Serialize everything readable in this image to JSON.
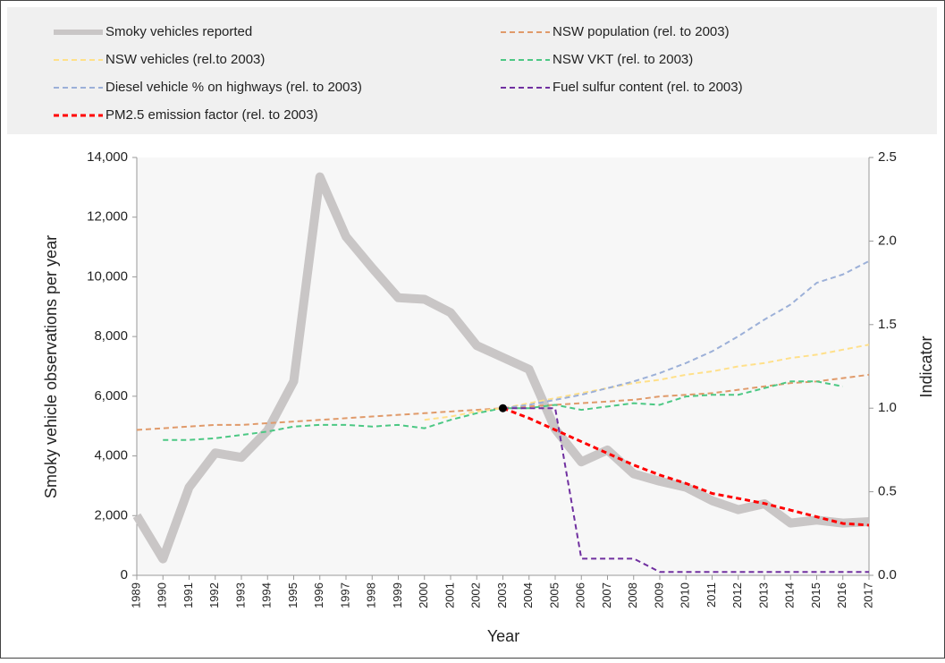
{
  "chart_data": {
    "type": "line",
    "legend": "top",
    "xlabel": "Year",
    "ylabel": "Smoky vehicle  observations per year",
    "y2label": "Indicator",
    "categories": [
      "1989",
      "1990",
      "1991",
      "1992",
      "1993",
      "1994",
      "1995",
      "1996",
      "1997",
      "1998",
      "1999",
      "2000",
      "2001",
      "2002",
      "2003",
      "2004",
      "2005",
      "2006",
      "2007",
      "2008",
      "2009",
      "2010",
      "2011",
      "2012",
      "2013",
      "2014",
      "2015",
      "2016",
      "2017"
    ],
    "ylim": [
      0,
      14000
    ],
    "yticks": [
      0,
      {
        "value": 2000,
        "label": "2,000"
      },
      {
        "value": 4000,
        "label": "4,000"
      },
      {
        "value": 6000,
        "label": "6,000"
      },
      {
        "value": 8000,
        "label": "8,000"
      },
      {
        "value": 10000,
        "label": "10,000"
      },
      {
        "value": 12000,
        "label": "12,000"
      },
      {
        "value": 14000,
        "label": "14,000"
      }
    ],
    "y2lim": [
      0,
      2.5
    ],
    "y2ticks": [
      {
        "value": 0,
        "label": "0.0"
      },
      0.5,
      {
        "value": 1,
        "label": "1.0"
      },
      1.5,
      {
        "value": 2,
        "label": "2.0"
      },
      2.5
    ],
    "series": [
      {
        "name": "Smoky vehicles reported",
        "color": "#c9c6c6",
        "width": 10,
        "dashed": false,
        "values": [
          2000,
          550,
          2950,
          4100,
          3950,
          4850,
          6500,
          13350,
          11350,
          10300,
          9300,
          9250,
          8800,
          7700,
          7300,
          6900,
          4900,
          3800,
          4200,
          3400,
          3150,
          2950,
          2500,
          2200,
          2400,
          1750,
          1850,
          1750,
          1800
        ]
      },
      {
        "name": "NSW population (rel. to 2003)",
        "color": "#e09a6a",
        "width": 2,
        "dashed": true,
        "axis": "y2",
        "values": [
          0.87,
          0.88,
          0.89,
          0.9,
          0.9,
          0.91,
          0.92,
          0.93,
          0.94,
          0.95,
          0.96,
          0.97,
          0.98,
          0.99,
          1.0,
          1.01,
          1.02,
          1.03,
          1.04,
          1.05,
          1.07,
          1.08,
          1.09,
          1.11,
          1.13,
          1.15,
          1.16,
          1.18,
          1.2
        ]
      },
      {
        "name": "NSW vehicles (rel.to 2003)",
        "color": "#ffe08a",
        "width": 2,
        "dashed": true,
        "axis": "y2",
        "values": [
          null,
          null,
          null,
          null,
          null,
          null,
          null,
          null,
          null,
          null,
          null,
          0.93,
          0.95,
          0.98,
          1.0,
          1.03,
          1.06,
          1.09,
          1.12,
          1.15,
          1.17,
          1.2,
          1.22,
          1.25,
          1.27,
          1.3,
          1.32,
          1.35,
          1.38
        ]
      },
      {
        "name": "NSW VKT (rel. to 2003)",
        "color": "#4cc884",
        "width": 2,
        "dashed": true,
        "axis": "y2",
        "values": [
          null,
          0.81,
          0.81,
          0.82,
          0.84,
          0.86,
          0.89,
          0.9,
          0.9,
          0.89,
          0.9,
          0.88,
          0.93,
          0.97,
          1.0,
          1.0,
          1.02,
          0.99,
          1.01,
          1.03,
          1.02,
          1.07,
          1.08,
          1.08,
          1.12,
          1.16,
          1.16,
          1.13,
          null
        ]
      },
      {
        "name": "Diesel vehicle % on highways (rel. to 2003)",
        "color": "#9cb0d8",
        "width": 2,
        "dashed": true,
        "axis": "y2",
        "values": [
          null,
          null,
          null,
          null,
          null,
          null,
          null,
          null,
          null,
          null,
          null,
          null,
          null,
          null,
          1.0,
          1.02,
          1.05,
          1.08,
          1.12,
          1.16,
          1.21,
          1.27,
          1.34,
          1.43,
          1.53,
          1.62,
          1.75,
          1.8,
          1.88
        ]
      },
      {
        "name": "Fuel sulfur content (rel. to 2003)",
        "color": "#7030a0",
        "width": 2,
        "dashed": true,
        "axis": "y2",
        "values": [
          null,
          null,
          null,
          null,
          null,
          null,
          null,
          null,
          null,
          null,
          null,
          null,
          null,
          null,
          1.0,
          1.0,
          1.0,
          0.1,
          0.1,
          0.1,
          0.02,
          0.02,
          0.02,
          0.02,
          0.02,
          0.02,
          0.02,
          0.02,
          0.02
        ]
      },
      {
        "name": "PM2.5 emission factor (rel. to 2003)",
        "color": "#ff0000",
        "width": 3,
        "dashed": true,
        "axis": "y2",
        "values": [
          null,
          null,
          null,
          null,
          null,
          null,
          null,
          null,
          null,
          null,
          null,
          null,
          null,
          null,
          1.0,
          0.94,
          0.87,
          0.8,
          0.73,
          0.66,
          0.6,
          0.55,
          0.49,
          0.46,
          0.43,
          0.39,
          0.35,
          0.31,
          0.3
        ]
      }
    ]
  }
}
